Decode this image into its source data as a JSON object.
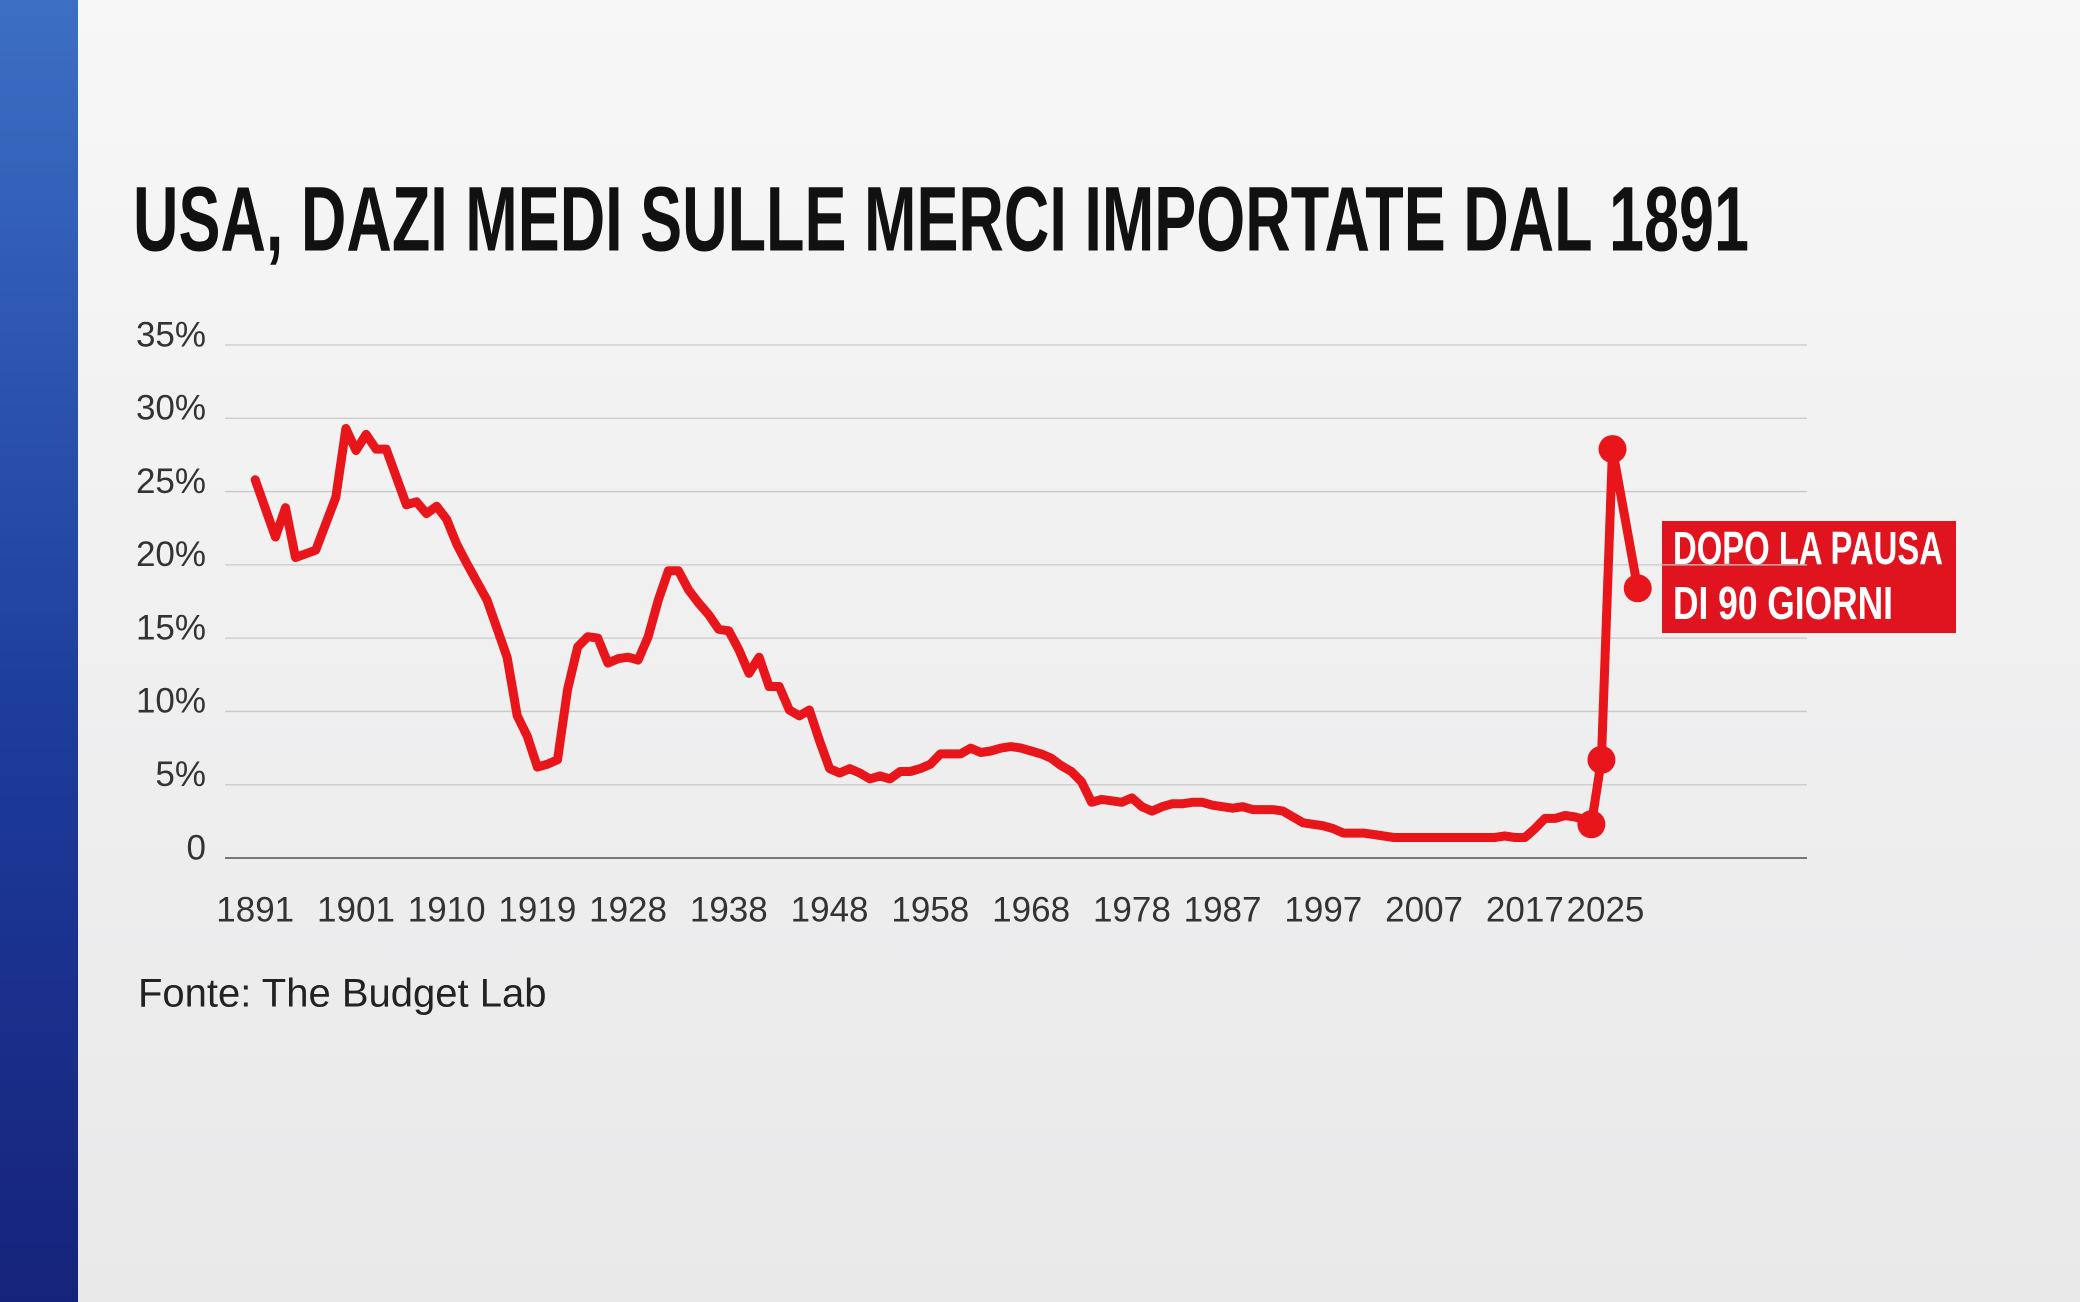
{
  "chart_data": {
    "type": "line",
    "title": "USA, DAZI MEDI SULLE MERCI IMPORTATE DAL 1891",
    "source": "Fonte: The Budget Lab",
    "annotation": [
      "DOPO LA PAUSA",
      "DI 90 GIORNI"
    ],
    "color": "#e8161b",
    "xlim": [
      1888,
      2045
    ],
    "xticks": [
      1891,
      1901,
      1910,
      1919,
      1928,
      1938,
      1948,
      1958,
      1968,
      1978,
      1987,
      1997,
      2007,
      2017,
      2025
    ],
    "ylim": [
      0,
      35
    ],
    "yticks": [
      0,
      {
        "value": 5,
        "label": "5%"
      },
      {
        "value": 10,
        "label": "10%"
      },
      {
        "value": 15,
        "label": "15%"
      },
      {
        "value": 20,
        "label": "20%"
      },
      {
        "value": 25,
        "label": "25%"
      },
      {
        "value": 30,
        "label": "30%"
      },
      {
        "value": 35,
        "label": "35%"
      }
    ],
    "grid": true,
    "series": [
      {
        "markers": false,
        "x": [
          1891,
          1893,
          1894,
          1895,
          1897,
          1899,
          1900,
          1901,
          1902,
          1903,
          1904,
          1906,
          1907,
          1908,
          1909,
          1910,
          1911,
          1912,
          1914,
          1916,
          1917,
          1918,
          1919,
          1920,
          1921,
          1922,
          1923,
          1924,
          1925,
          1926,
          1927,
          1928,
          1929,
          1930,
          1931,
          1932,
          1933,
          1934,
          1935,
          1936,
          1937,
          1938,
          1939,
          1940,
          1941,
          1942,
          1943,
          1944,
          1945,
          1946,
          1947,
          1948,
          1949,
          1950,
          1951,
          1952,
          1953,
          1954,
          1955,
          1956,
          1957,
          1958,
          1959,
          1960,
          1961,
          1962,
          1963,
          1964,
          1965,
          1966,
          1967,
          1968,
          1969,
          1970,
          1971,
          1972,
          1973,
          1974,
          1975,
          1976,
          1977,
          1978,
          1979,
          1980,
          1981,
          1982,
          1983,
          1984,
          1985,
          1986,
          1987,
          1988,
          1989,
          1990,
          1991,
          1992,
          1993,
          1994,
          1995,
          1996,
          1997,
          1998,
          1999,
          2000,
          2001,
          2002,
          2003,
          2004,
          2005,
          2006,
          2007,
          2008,
          2009,
          2010,
          2011,
          2012,
          2013,
          2014,
          2015,
          2016,
          2017,
          2018,
          2019,
          2020,
          2021,
          2022,
          2023
        ],
        "values": [
          25.8,
          21.9,
          23.9,
          20.5,
          21,
          24.6,
          29.3,
          27.8,
          28.9,
          27.9,
          27.9,
          24.1,
          24.3,
          23.5,
          24,
          23.1,
          21.4,
          20.1,
          17.6,
          13.7,
          9.7,
          8.3,
          6.2,
          6.4,
          6.7,
          11.5,
          14.4,
          15.1,
          15,
          13.3,
          13.6,
          13.7,
          13.5,
          15.1,
          17.6,
          19.6,
          19.6,
          18.3,
          17.4,
          16.6,
          15.6,
          15.5,
          14.2,
          12.6,
          13.7,
          11.7,
          11.7,
          10.1,
          9.7,
          10.1,
          8,
          6.1,
          5.8,
          6.1,
          5.8,
          5.4,
          5.6,
          5.4,
          5.9,
          5.9,
          6.1,
          6.4,
          7.1,
          7.1,
          7.1,
          7.5,
          7.2,
          7.3,
          7.5,
          7.6,
          7.5,
          7.3,
          7.1,
          6.8,
          6.3,
          5.9,
          5.2,
          3.8,
          4,
          3.9,
          3.8,
          4.1,
          3.5,
          3.2,
          3.5,
          3.7,
          3.7,
          3.8,
          3.8,
          3.6,
          3.5,
          3.4,
          3.5,
          3.3,
          3.3,
          3.3,
          3.2,
          2.8,
          2.4,
          2.3,
          2.2,
          2,
          1.7,
          1.7,
          1.7,
          1.6,
          1.5,
          1.4,
          1.4,
          1.4,
          1.4,
          1.4,
          1.4,
          1.4,
          1.4,
          1.4,
          1.4,
          1.4,
          1.5,
          1.4,
          1.4,
          2,
          2.7,
          2.7,
          2.9,
          2.8,
          2.6
        ]
      },
      {
        "markers": true,
        "x": [
          2023.6,
          2024.6,
          2025.7,
          2028.2
        ],
        "values": [
          2.3,
          6.7,
          27.9,
          18.4
        ]
      }
    ]
  }
}
